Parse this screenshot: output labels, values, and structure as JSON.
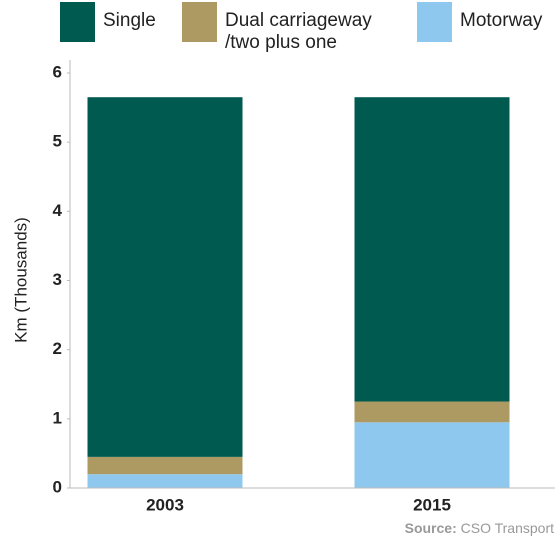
{
  "chart_data": {
    "type": "stacked_bar",
    "y_label": "Km (Thousands)",
    "categories": [
      "2003",
      "2015"
    ],
    "series": [
      {
        "name": "Single",
        "color": "#005a50",
        "values": [
          5.2,
          4.4
        ]
      },
      {
        "name": "Dual carriageway /two plus one",
        "color": "#ad9a62",
        "values": [
          0.25,
          0.3
        ]
      },
      {
        "name": "Motorway",
        "color": "#8ec8ee",
        "values": [
          0.2,
          0.95
        ]
      }
    ],
    "ylim": [
      0,
      6
    ],
    "yticks": [
      0,
      1,
      2,
      3,
      4,
      5,
      6
    ],
    "source_label": "Source:",
    "source": "CSO Transport"
  }
}
